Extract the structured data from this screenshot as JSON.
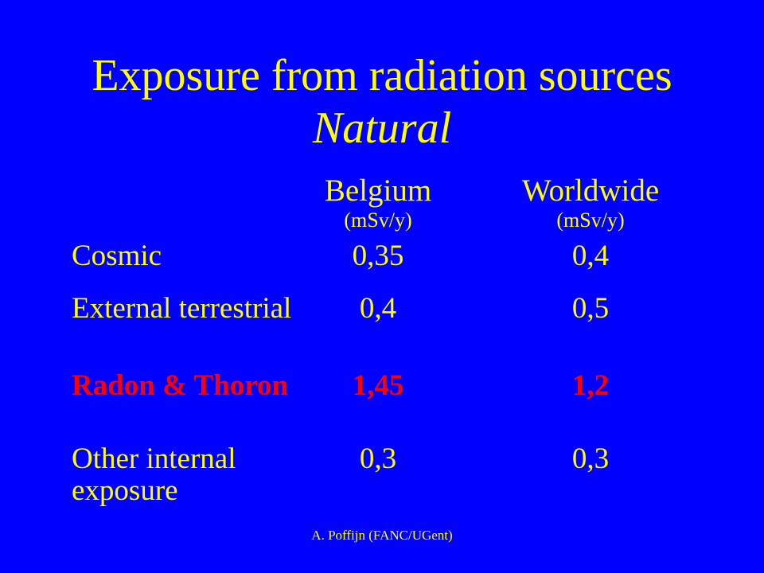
{
  "title": {
    "line1": "Exposure from radiation sources",
    "line2": "Natural"
  },
  "columns": [
    {
      "name": "Belgium",
      "unit": "(mSv/y)"
    },
    {
      "name": "Worldwide",
      "unit": "(mSv/y)"
    }
  ],
  "rows": [
    {
      "label": "Cosmic",
      "belgium": "0,35",
      "worldwide": "0,4",
      "highlight": false
    },
    {
      "label": "External terrestrial",
      "belgium": "0,4",
      "worldwide": "0,5",
      "highlight": false
    },
    {
      "label": "Radon & Thoron",
      "belgium": "1,45",
      "worldwide": "1,2",
      "highlight": true
    },
    {
      "label": "Other internal exposure",
      "belgium": "0,3",
      "worldwide": "0,3",
      "highlight": false
    }
  ],
  "footer": "A. Poffijn (FANC/UGent)",
  "colors": {
    "background": "#0000ff",
    "text": "#ffff00",
    "highlight": "#ff0000"
  }
}
